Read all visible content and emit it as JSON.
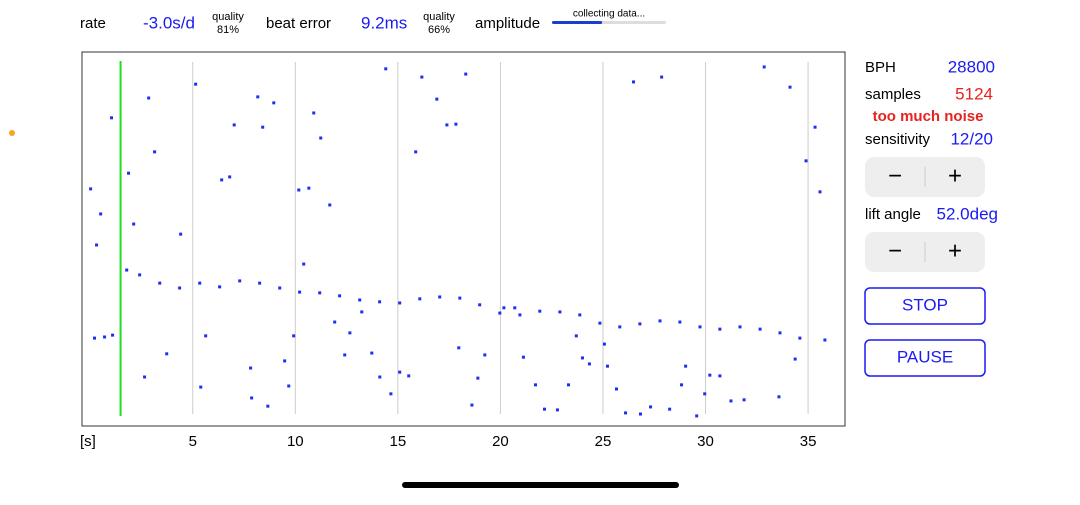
{
  "header": {
    "rate_label": "rate",
    "rate_value": "-3.0s/d",
    "rate_quality_label": "quality",
    "rate_quality": "81%",
    "beat_error_label": "beat error",
    "beat_error_value": "9.2ms",
    "beat_quality_label": "quality",
    "beat_quality": "66%",
    "amplitude_label": "amplitude",
    "amplitude_status": "collecting data...",
    "amplitude_progress": 0.44
  },
  "panel": {
    "bph_label": "BPH",
    "bph_value": "28800",
    "samples_label": "samples",
    "samples_value": "5124",
    "warning": "too much noise",
    "sensitivity_label": "sensitivity",
    "sensitivity_value": "12/20",
    "sensitivity_buttons": [
      "−",
      "+"
    ],
    "lift_angle_label": "lift angle",
    "lift_angle_value": "52.0deg",
    "lift_angle_buttons": [
      "−",
      "+"
    ],
    "stop_button": "STOP",
    "pause_button": "PAUSE"
  },
  "chart_data": {
    "type": "scatter",
    "x_label": "[s]",
    "color": "#1f2ef0",
    "grid": true,
    "marker_x": 1.48,
    "xlim": [
      -0.4,
      36.8
    ],
    "ylim": [
      0,
      100
    ],
    "xticks": [
      5,
      10,
      15,
      20,
      25,
      30,
      35
    ],
    "x": [
      0.21,
      0.7,
      1.09,
      1.78,
      2.41,
      3.39,
      4.36,
      5.34,
      6.31,
      7.29,
      8.26,
      9.24,
      10.21,
      11.19,
      12.16,
      13.14,
      14.11,
      15.09,
      16.07,
      17.04,
      18.02,
      18.99,
      19.97,
      20.95,
      21.92,
      22.9,
      23.87,
      24.85,
      25.82,
      26.8,
      27.78,
      28.75,
      29.73,
      30.7,
      31.68,
      32.66,
      33.63,
      34.6,
      35.82,
      0.02,
      0.51,
      0.31,
      1.04,
      1.87,
      2.12,
      2.85,
      3.14,
      2.65,
      3.73,
      4.41,
      5.14,
      5.39,
      5.63,
      6.41,
      6.8,
      7.02,
      7.82,
      8.17,
      8.41,
      8.95,
      7.87,
      8.66,
      9.48,
      9.68,
      9.92,
      10.17,
      10.41,
      10.66,
      10.9,
      11.24,
      11.68,
      11.92,
      12.41,
      12.66,
      13.24,
      13.73,
      14.12,
      14.41,
      14.66,
      15.09,
      15.53,
      15.87,
      16.17,
      16.9,
      17.39,
      17.83,
      17.97,
      18.31,
      18.61,
      18.9,
      19.24,
      20.17,
      20.7,
      21.12,
      21.71,
      22.15,
      22.78,
      23.32,
      23.7,
      24.0,
      24.34,
      25.07,
      25.22,
      25.66,
      26.1,
      26.49,
      26.83,
      27.32,
      27.86,
      28.25,
      28.83,
      29.03,
      29.57,
      29.96,
      30.21,
      30.7,
      31.24,
      31.88,
      32.86,
      33.58,
      34.12,
      34.37,
      34.9,
      35.34,
      35.58
    ],
    "values": [
      23.5,
      23.8,
      24.3,
      41.7,
      40.4,
      38.2,
      36.9,
      38.2,
      37.2,
      38.8,
      38.2,
      36.9,
      35.8,
      35.6,
      34.8,
      33.7,
      33.2,
      32.9,
      34.0,
      34.5,
      34.2,
      32.4,
      30.2,
      29.7,
      30.7,
      30.5,
      29.7,
      27.5,
      26.5,
      27.3,
      28.1,
      27.8,
      26.5,
      25.9,
      26.5,
      25.9,
      24.9,
      23.5,
      23.0,
      63.4,
      56.7,
      48.4,
      82.4,
      67.6,
      54.0,
      87.7,
      73.3,
      13.1,
      19.3,
      51.3,
      91.4,
      10.4,
      24.1,
      65.8,
      66.6,
      80.5,
      15.5,
      88.0,
      79.9,
      86.4,
      7.5,
      5.3,
      17.4,
      10.7,
      24.1,
      63.1,
      43.3,
      63.6,
      83.7,
      77.0,
      59.1,
      27.8,
      19.0,
      24.9,
      30.5,
      19.5,
      13.1,
      95.5,
      8.6,
      14.4,
      13.4,
      73.3,
      93.3,
      87.4,
      80.5,
      80.7,
      20.9,
      94.1,
      5.6,
      12.8,
      19.0,
      31.6,
      31.6,
      18.4,
      11.0,
      4.5,
      4.3,
      11.0,
      24.1,
      18.2,
      16.6,
      21.9,
      16.0,
      9.9,
      3.5,
      92.0,
      3.2,
      5.1,
      93.3,
      4.5,
      11.0,
      16.0,
      2.7,
      8.6,
      13.6,
      13.4,
      6.7,
      7.0,
      96.0,
      7.8,
      90.6,
      17.9,
      70.9,
      79.9,
      62.6
    ]
  }
}
